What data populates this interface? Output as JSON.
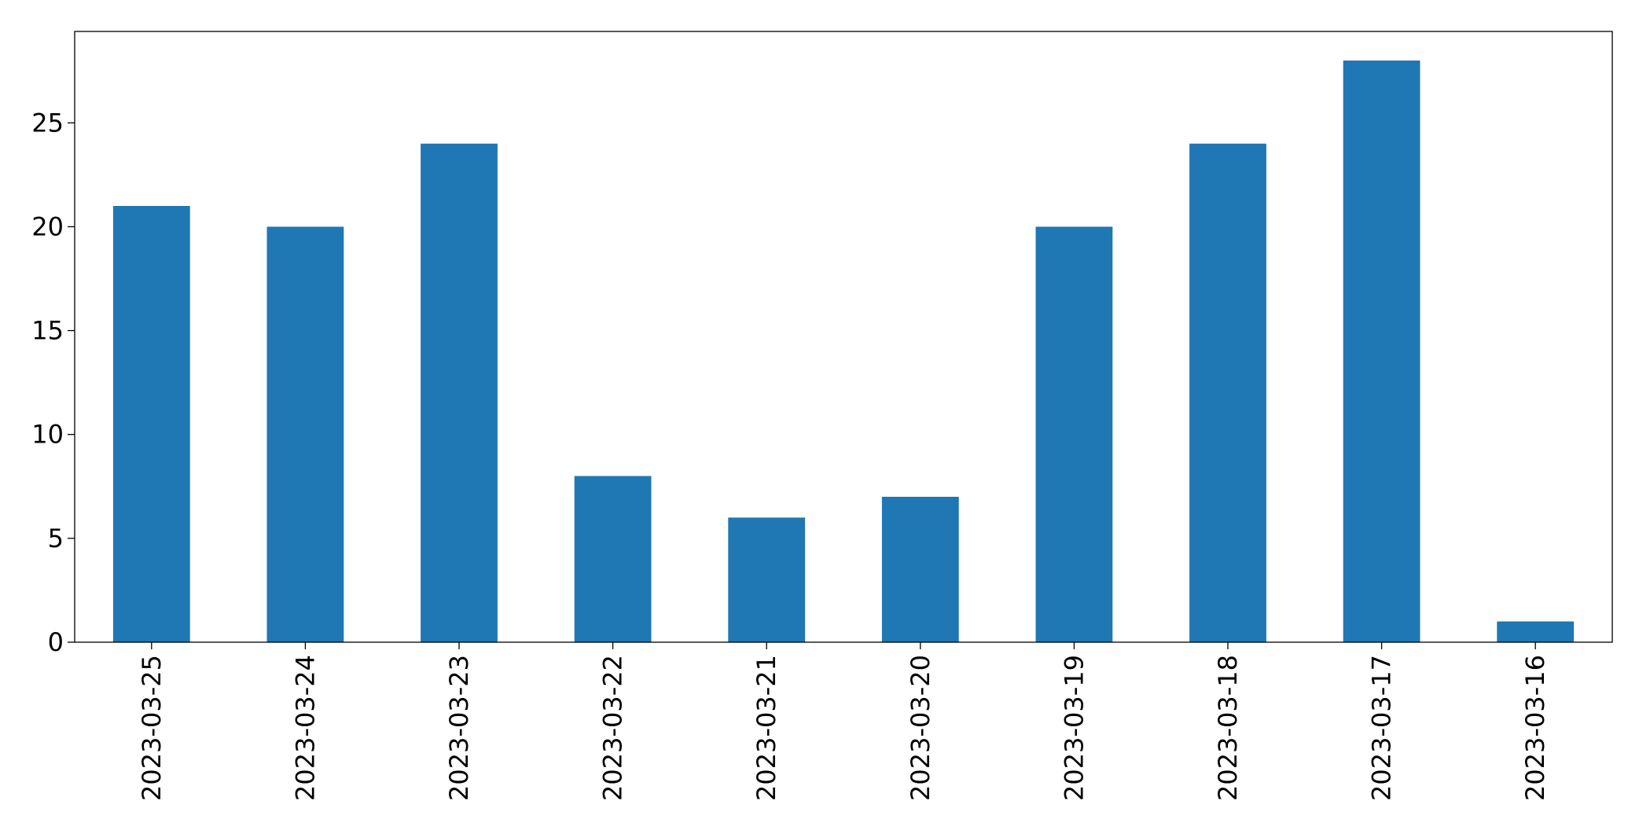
{
  "chart_data": {
    "type": "bar",
    "categories": [
      "2023-03-25",
      "2023-03-24",
      "2023-03-23",
      "2023-03-22",
      "2023-03-21",
      "2023-03-20",
      "2023-03-19",
      "2023-03-18",
      "2023-03-17",
      "2023-03-16"
    ],
    "values": [
      21,
      20,
      24,
      8,
      6,
      7,
      20,
      24,
      28,
      1
    ],
    "color": "#1f77b4",
    "ylim": [
      0,
      29.4
    ],
    "yticks": [
      0,
      5,
      10,
      15,
      20,
      25
    ],
    "grid": false
  }
}
